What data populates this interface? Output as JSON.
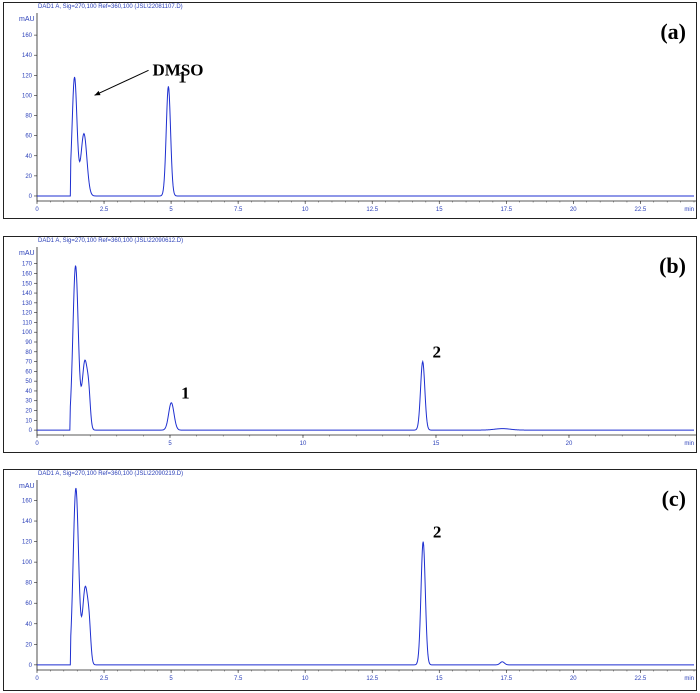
{
  "colors": {
    "trace": "#1e2fd0",
    "axis": "#222222",
    "tick_text": "#2a3fb8",
    "annotation": "#000000"
  },
  "chart_data": [
    {
      "type": "line",
      "panel_label": "(a)",
      "header": "DAD1 A, Sig=270,100 Ref=360,100 (JSL\\22081107.D)",
      "ylabel": "mAU",
      "xlabel_unit": "min",
      "xlim": [
        0,
        24.5
      ],
      "ylim": [
        -5,
        180
      ],
      "x_ticks": [
        0,
        2.5,
        5,
        7.5,
        10,
        12.5,
        15,
        17.5,
        20,
        22.5
      ],
      "x_tick_labels": [
        "0",
        "2.5",
        "5",
        "7.5",
        "10",
        "12.5",
        "15",
        "17.5",
        "20",
        "22.5"
      ],
      "y_ticks": [
        0,
        20,
        40,
        60,
        80,
        100,
        120,
        140,
        160
      ],
      "y_tick_labels": [
        "0",
        "20",
        "40",
        "60",
        "80",
        "100",
        "120",
        "140",
        "160"
      ],
      "grid": false,
      "baseline": 0,
      "peaks": [
        {
          "x": 1.4,
          "height": 118,
          "width": 0.09
        },
        {
          "x": 1.75,
          "height": 62,
          "width": 0.11
        },
        {
          "x": 4.9,
          "height": 109,
          "width": 0.08
        }
      ],
      "annotations": [
        {
          "text": "DMSO",
          "x": 1.4,
          "y": 118,
          "arrow": true
        },
        {
          "text": "1",
          "x": 4.9,
          "y": 109
        }
      ]
    },
    {
      "type": "line",
      "panel_label": "(b)",
      "header": "DAD1 A, Sig=270,100 Ref=360,100 (JSL\\22090612.D)",
      "ylabel": "mAU",
      "xlabel_unit": "min",
      "xlim": [
        0,
        24.7
      ],
      "ylim": [
        -5,
        185
      ],
      "x_ticks": [
        0,
        5,
        10,
        15,
        20
      ],
      "x_tick_labels": [
        "0",
        "5",
        "10",
        "15",
        "20"
      ],
      "y_ticks": [
        0,
        10,
        20,
        30,
        40,
        50,
        60,
        70,
        80,
        90,
        100,
        110,
        120,
        130,
        140,
        150,
        160,
        170
      ],
      "y_tick_labels": [
        "0",
        "10",
        "20",
        "30",
        "40",
        "50",
        "60",
        "70",
        "80",
        "90",
        "100",
        "110",
        "120",
        "130",
        "140",
        "150",
        "160",
        "170"
      ],
      "grid": false,
      "baseline": 0,
      "peaks": [
        {
          "x": 1.45,
          "height": 168,
          "width": 0.1
        },
        {
          "x": 1.8,
          "height": 70,
          "width": 0.1
        },
        {
          "x": 1.95,
          "height": 25,
          "width": 0.06
        },
        {
          "x": 5.05,
          "height": 28,
          "width": 0.1
        },
        {
          "x": 14.5,
          "height": 70,
          "width": 0.08
        },
        {
          "x": 17.5,
          "height": 1.5,
          "width": 0.3
        }
      ],
      "annotations": [
        {
          "text": "1",
          "x": 5.05,
          "y": 28
        },
        {
          "text": "2",
          "x": 14.5,
          "y": 70
        }
      ]
    },
    {
      "type": "line",
      "panel_label": "(c)",
      "header": "DAD1 A, Sig=270,100 Ref=360,100 (JSL\\22090219.D)",
      "ylabel": "mAU",
      "xlabel_unit": "min",
      "xlim": [
        0,
        24.5
      ],
      "ylim": [
        -5,
        178
      ],
      "x_ticks": [
        0,
        2.5,
        5,
        7.5,
        10,
        12.5,
        15,
        17.5,
        20,
        22.5
      ],
      "x_tick_labels": [
        "0",
        "2.5",
        "5",
        "7.5",
        "10",
        "12.5",
        "15",
        "17.5",
        "20",
        "22.5"
      ],
      "y_ticks": [
        0,
        20,
        40,
        60,
        80,
        100,
        120,
        140,
        160
      ],
      "y_tick_labels": [
        "0",
        "20",
        "40",
        "60",
        "80",
        "100",
        "120",
        "140",
        "160"
      ],
      "grid": false,
      "baseline": 0,
      "peaks": [
        {
          "x": 1.45,
          "height": 172,
          "width": 0.1
        },
        {
          "x": 1.8,
          "height": 75,
          "width": 0.1
        },
        {
          "x": 1.95,
          "height": 25,
          "width": 0.06
        },
        {
          "x": 14.4,
          "height": 120,
          "width": 0.08
        },
        {
          "x": 17.35,
          "height": 3,
          "width": 0.08
        }
      ],
      "annotations": [
        {
          "text": "2",
          "x": 14.4,
          "y": 120
        }
      ]
    }
  ]
}
